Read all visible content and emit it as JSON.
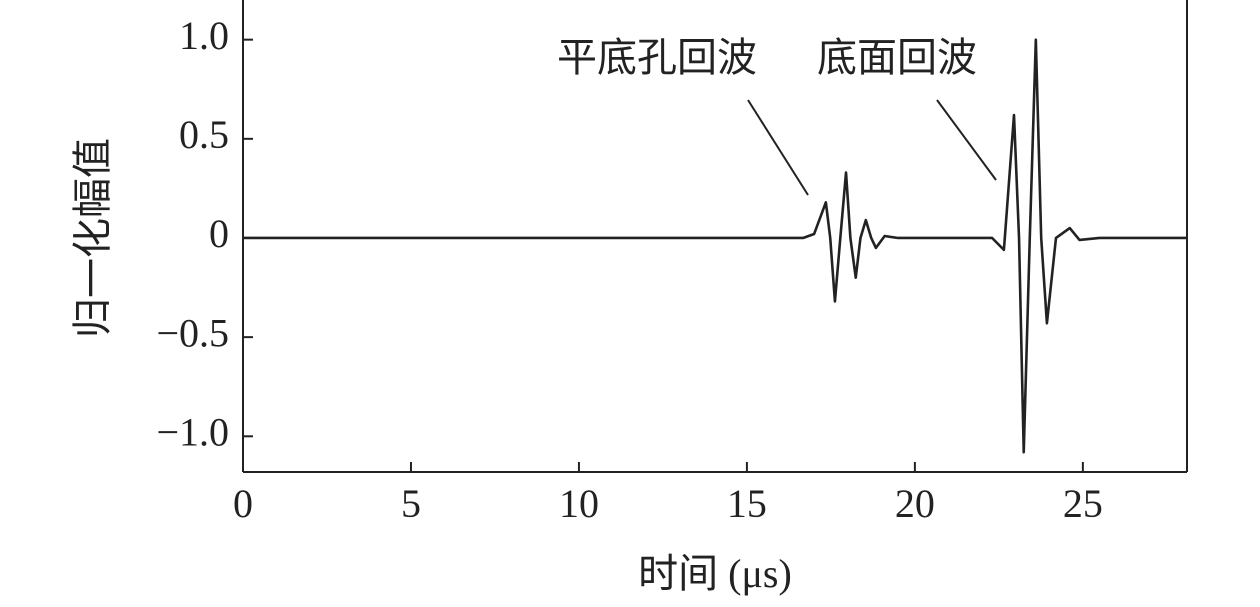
{
  "chart_data": {
    "type": "line",
    "x_label": "时间 (μs)",
    "y_label": "归一化幅值",
    "annotations": [
      "平底孔回波",
      "底面回波"
    ],
    "x": [
      0,
      16.67,
      17.0,
      17.35,
      17.48,
      17.62,
      17.78,
      17.95,
      18.08,
      18.24,
      18.38,
      18.54,
      18.7,
      18.84,
      19.1,
      19.5,
      22.3,
      22.65,
      22.95,
      23.1,
      23.24,
      23.42,
      23.6,
      23.76,
      23.93,
      24.2,
      24.61,
      24.9,
      25.5,
      28.1
    ],
    "series": [
      {
        "color": "#222222",
        "values": [
          0,
          0,
          0.02,
          0.18,
          0,
          -0.32,
          0,
          0.33,
          0,
          -0.2,
          0,
          0.09,
          0,
          -0.05,
          0.01,
          0,
          0,
          -0.06,
          0.62,
          0,
          -1.08,
          0,
          1.0,
          0,
          -0.43,
          0,
          0.05,
          -0.01,
          0,
          0
        ]
      }
    ],
    "xlim": [
      0,
      28.1
    ],
    "ylim": [
      -1.18,
      1.2
    ],
    "xticks": [
      0,
      5,
      10,
      15,
      20,
      25
    ],
    "yticks": [
      {
        "value": 1,
        "label": "1.0"
      },
      0.5,
      0,
      {
        "value": -0.5,
        "label": "−0.5"
      },
      {
        "value": -1,
        "label": "−1.0"
      }
    ]
  }
}
